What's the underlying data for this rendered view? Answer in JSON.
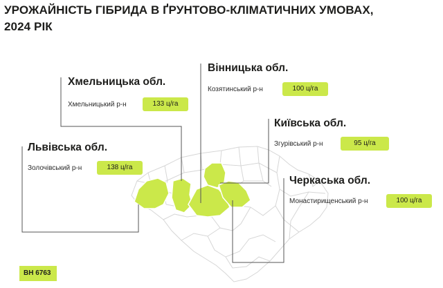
{
  "title": {
    "line1": "УРОЖАЙНІСТЬ ГІБРИДА В ҐРУНТОВО-КЛІМАТИЧНИХ УМОВАХ,",
    "line2": "2024 РІК"
  },
  "regions": [
    {
      "key": "khmelnytska",
      "name": "Хмельницька обл.",
      "district": "Хмельницький р-н",
      "yield": "133 ц/га"
    },
    {
      "key": "vinnytska",
      "name": "Вінницька обл.",
      "district": "Козятинський р-н",
      "yield": "100 ц/га"
    },
    {
      "key": "kyivska",
      "name": "Київська обл.",
      "district": "Згурівський р-н",
      "yield": "95 ц/га"
    },
    {
      "key": "lvivska",
      "name": "Львівська обл.",
      "district": "Золочівський р-н",
      "yield": "138 ц/га"
    },
    {
      "key": "cherkaska",
      "name": "Черкаська обл.",
      "district": "Монастирищенський р-н",
      "yield": "100 ц/га"
    }
  ],
  "hybrid": "ВН 6763",
  "colors": {
    "accent": "#cbe84a",
    "map_lines": "#d9d9d9",
    "leader_lines": "#555555"
  }
}
